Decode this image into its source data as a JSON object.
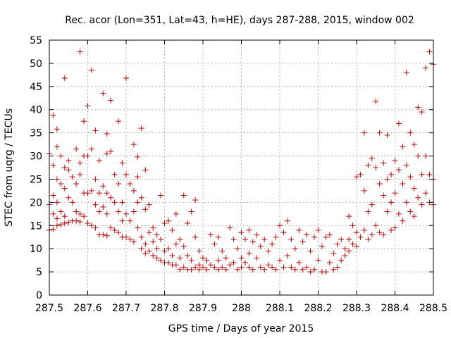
{
  "chart_data": {
    "type": "scatter",
    "title": "Rec. acor (Lon=351, Lat=43, h=HE), days 287-288, 2015, window 002",
    "xlabel": "GPS time / Days of year 2015",
    "ylabel": "STEC from uqrg / TECUs",
    "xlim": [
      287.5,
      288.5
    ],
    "ylim": [
      0,
      55
    ],
    "xticks": [
      287.5,
      287.6,
      287.7,
      287.8,
      287.9,
      288.0,
      288.1,
      288.2,
      288.3,
      288.4,
      288.5
    ],
    "xtick_labels": [
      "287.5",
      "287.6",
      "287.7",
      "287.8",
      "287.9",
      "288",
      "288.1",
      "288.2",
      "288.3",
      "288.4",
      "288.5"
    ],
    "yticks": [
      0,
      5,
      10,
      15,
      20,
      25,
      30,
      35,
      40,
      45,
      50,
      55
    ],
    "ytick_labels": [
      "0",
      "5",
      "10",
      "15",
      "20",
      "25",
      "30",
      "35",
      "40",
      "45",
      "50",
      "55"
    ],
    "grid": true,
    "marker": "+",
    "color": "#c00000",
    "points": [
      [
        287.5,
        30.5
      ],
      [
        287.5,
        19.5
      ],
      [
        287.5,
        14.0
      ],
      [
        287.51,
        38.8
      ],
      [
        287.51,
        28.0
      ],
      [
        287.51,
        21.5
      ],
      [
        287.51,
        17.5
      ],
      [
        287.51,
        14.2
      ],
      [
        287.52,
        35.8
      ],
      [
        287.52,
        32.0
      ],
      [
        287.52,
        25.0
      ],
      [
        287.52,
        20.0
      ],
      [
        287.52,
        16.5
      ],
      [
        287.52,
        15.0
      ],
      [
        287.53,
        30.0
      ],
      [
        287.53,
        24.0
      ],
      [
        287.53,
        18.0
      ],
      [
        287.53,
        15.2
      ],
      [
        287.54,
        46.8
      ],
      [
        287.54,
        27.5
      ],
      [
        287.54,
        23.0
      ],
      [
        287.54,
        17.0
      ],
      [
        287.54,
        15.5
      ],
      [
        287.55,
        29.0
      ],
      [
        287.55,
        27.0
      ],
      [
        287.55,
        21.0
      ],
      [
        287.55,
        15.7
      ],
      [
        287.56,
        25.5
      ],
      [
        287.56,
        20.0
      ],
      [
        287.56,
        16.0
      ],
      [
        287.57,
        31.5
      ],
      [
        287.57,
        24.0
      ],
      [
        287.57,
        18.0
      ],
      [
        287.57,
        16.0
      ],
      [
        287.58,
        52.5
      ],
      [
        287.58,
        28.5
      ],
      [
        287.58,
        26.0
      ],
      [
        287.58,
        17.5
      ],
      [
        287.58,
        15.8
      ],
      [
        287.59,
        37.5
      ],
      [
        287.59,
        30.0
      ],
      [
        287.59,
        22.0
      ],
      [
        287.59,
        17.0
      ],
      [
        287.6,
        40.8
      ],
      [
        287.6,
        30.0
      ],
      [
        287.6,
        22.0
      ],
      [
        287.6,
        15.5
      ],
      [
        287.61,
        48.5
      ],
      [
        287.61,
        31.5
      ],
      [
        287.61,
        22.5
      ],
      [
        287.61,
        15.0
      ],
      [
        287.62,
        35.5
      ],
      [
        287.62,
        25.0
      ],
      [
        287.62,
        19.5
      ],
      [
        287.62,
        14.5
      ],
      [
        287.63,
        29.0
      ],
      [
        287.63,
        22.0
      ],
      [
        287.63,
        18.0
      ],
      [
        287.63,
        13.0
      ],
      [
        287.64,
        43.5
      ],
      [
        287.64,
        23.5
      ],
      [
        287.64,
        19.0
      ],
      [
        287.64,
        13.0
      ],
      [
        287.65,
        34.8
      ],
      [
        287.65,
        30.5
      ],
      [
        287.65,
        22.0
      ],
      [
        287.65,
        17.5
      ],
      [
        287.65,
        12.8
      ],
      [
        287.66,
        42.0
      ],
      [
        287.66,
        31.0
      ],
      [
        287.66,
        21.0
      ],
      [
        287.66,
        14.5
      ],
      [
        287.67,
        26.0
      ],
      [
        287.67,
        20.0
      ],
      [
        287.67,
        14.0
      ],
      [
        287.68,
        37.5
      ],
      [
        287.68,
        24.0
      ],
      [
        287.68,
        18.0
      ],
      [
        287.68,
        13.5
      ],
      [
        287.69,
        28.5
      ],
      [
        287.69,
        20.0
      ],
      [
        287.69,
        16.0
      ],
      [
        287.69,
        12.5
      ],
      [
        287.7,
        46.8
      ],
      [
        287.7,
        26.0
      ],
      [
        287.7,
        17.5
      ],
      [
        287.7,
        12.5
      ],
      [
        287.71,
        24.0
      ],
      [
        287.71,
        16.0
      ],
      [
        287.71,
        12.0
      ],
      [
        287.72,
        32.5
      ],
      [
        287.72,
        22.5
      ],
      [
        287.72,
        18.0
      ],
      [
        287.72,
        11.5
      ],
      [
        287.73,
        29.8
      ],
      [
        287.73,
        25.5
      ],
      [
        287.73,
        20.0
      ],
      [
        287.73,
        14.5
      ],
      [
        287.74,
        36.0
      ],
      [
        287.74,
        21.0
      ],
      [
        287.74,
        12.5
      ],
      [
        287.74,
        10.0
      ],
      [
        287.75,
        27.0
      ],
      [
        287.75,
        18.5
      ],
      [
        287.75,
        11.0
      ],
      [
        287.75,
        9.0
      ],
      [
        287.76,
        19.5
      ],
      [
        287.76,
        13.5
      ],
      [
        287.76,
        9.5
      ],
      [
        287.77,
        14.5
      ],
      [
        287.77,
        11.5
      ],
      [
        287.77,
        8.5
      ],
      [
        287.78,
        13.0
      ],
      [
        287.78,
        10.0
      ],
      [
        287.78,
        8.0
      ],
      [
        287.79,
        21.5
      ],
      [
        287.79,
        12.0
      ],
      [
        287.79,
        7.5
      ],
      [
        287.8,
        15.5
      ],
      [
        287.8,
        9.5
      ],
      [
        287.8,
        7.0
      ],
      [
        287.81,
        16.0
      ],
      [
        287.81,
        10.0
      ],
      [
        287.81,
        7.0
      ],
      [
        287.82,
        14.0
      ],
      [
        287.82,
        8.5
      ],
      [
        287.82,
        6.5
      ],
      [
        287.83,
        17.5
      ],
      [
        287.83,
        11.0
      ],
      [
        287.83,
        6.5
      ],
      [
        287.84,
        12.0
      ],
      [
        287.84,
        8.0
      ],
      [
        287.84,
        5.5
      ],
      [
        287.85,
        21.5
      ],
      [
        287.85,
        10.5
      ],
      [
        287.85,
        6.0
      ],
      [
        287.86,
        15.5
      ],
      [
        287.86,
        8.5
      ],
      [
        287.86,
        5.5
      ],
      [
        287.87,
        18.0
      ],
      [
        287.87,
        7.5
      ],
      [
        287.87,
        5.5
      ],
      [
        287.88,
        20.5
      ],
      [
        287.88,
        12.5
      ],
      [
        287.88,
        6.0
      ],
      [
        287.89,
        9.5
      ],
      [
        287.89,
        6.5
      ],
      [
        287.89,
        5.5
      ],
      [
        287.9,
        8.0
      ],
      [
        287.9,
        6.0
      ],
      [
        287.91,
        7.5
      ],
      [
        287.91,
        5.5
      ],
      [
        287.92,
        13.0
      ],
      [
        287.92,
        6.5
      ],
      [
        287.93,
        11.0
      ],
      [
        287.93,
        6.0
      ],
      [
        287.94,
        12.5
      ],
      [
        287.94,
        7.5
      ],
      [
        287.94,
        5.5
      ],
      [
        287.95,
        9.5
      ],
      [
        287.95,
        6.0
      ],
      [
        287.96,
        8.0
      ],
      [
        287.96,
        5.5
      ],
      [
        287.97,
        14.5
      ],
      [
        287.97,
        6.5
      ],
      [
        287.98,
        12.0
      ],
      [
        287.98,
        7.0
      ],
      [
        287.99,
        10.0
      ],
      [
        287.99,
        5.5
      ],
      [
        288.0,
        13.5
      ],
      [
        288.0,
        8.0
      ],
      [
        288.0,
        6.0
      ],
      [
        288.01,
        12.0
      ],
      [
        288.01,
        7.0
      ],
      [
        288.02,
        14.0
      ],
      [
        288.02,
        9.0
      ],
      [
        288.02,
        6.0
      ],
      [
        288.03,
        11.5
      ],
      [
        288.03,
        5.5
      ],
      [
        288.04,
        13.0
      ],
      [
        288.04,
        8.0
      ],
      [
        288.05,
        10.5
      ],
      [
        288.05,
        6.0
      ],
      [
        288.06,
        12.0
      ],
      [
        288.06,
        5.5
      ],
      [
        288.07,
        9.5
      ],
      [
        288.07,
        6.5
      ],
      [
        288.08,
        11.0
      ],
      [
        288.08,
        6.0
      ],
      [
        288.09,
        12.5
      ],
      [
        288.09,
        5.5
      ],
      [
        288.1,
        15.0
      ],
      [
        288.1,
        7.5
      ],
      [
        288.11,
        13.5
      ],
      [
        288.11,
        6.0
      ],
      [
        288.12,
        16.0
      ],
      [
        288.12,
        8.5
      ],
      [
        288.13,
        12.0
      ],
      [
        288.13,
        6.0
      ],
      [
        288.14,
        10.0
      ],
      [
        288.14,
        5.5
      ],
      [
        288.15,
        14.0
      ],
      [
        288.15,
        7.0
      ],
      [
        288.16,
        11.5
      ],
      [
        288.16,
        5.5
      ],
      [
        288.17,
        13.0
      ],
      [
        288.17,
        6.0
      ],
      [
        288.18,
        9.5
      ],
      [
        288.18,
        5.0
      ],
      [
        288.19,
        12.5
      ],
      [
        288.19,
        5.5
      ],
      [
        288.2,
        14.0
      ],
      [
        288.2,
        7.5
      ],
      [
        288.21,
        10.5
      ],
      [
        288.21,
        5.0
      ],
      [
        288.22,
        12.5
      ],
      [
        288.22,
        5.0
      ],
      [
        288.23,
        13.0
      ],
      [
        288.23,
        7.0
      ],
      [
        288.24,
        9.0
      ],
      [
        288.24,
        5.5
      ],
      [
        288.25,
        11.0
      ],
      [
        288.25,
        6.0
      ],
      [
        288.26,
        12.0
      ],
      [
        288.26,
        7.5
      ],
      [
        288.27,
        10.0
      ],
      [
        288.27,
        8.5
      ],
      [
        288.28,
        17.0
      ],
      [
        288.28,
        12.0
      ],
      [
        288.28,
        9.5
      ],
      [
        288.29,
        15.0
      ],
      [
        288.29,
        11.0
      ],
      [
        288.3,
        25.5
      ],
      [
        288.3,
        13.5
      ],
      [
        288.3,
        10.5
      ],
      [
        288.31,
        26.0
      ],
      [
        288.31,
        12.5
      ],
      [
        288.32,
        35.0
      ],
      [
        288.32,
        22.5
      ],
      [
        288.32,
        14.0
      ],
      [
        288.33,
        28.0
      ],
      [
        288.33,
        18.0
      ],
      [
        288.33,
        12.0
      ],
      [
        288.34,
        29.5
      ],
      [
        288.34,
        19.5
      ],
      [
        288.34,
        13.0
      ],
      [
        288.35,
        41.8
      ],
      [
        288.35,
        27.5
      ],
      [
        288.35,
        15.0
      ],
      [
        288.36,
        35.0
      ],
      [
        288.36,
        24.0
      ],
      [
        288.36,
        13.5
      ],
      [
        288.37,
        28.5
      ],
      [
        288.37,
        21.5
      ],
      [
        288.37,
        13.0
      ],
      [
        288.38,
        34.5
      ],
      [
        288.38,
        25.0
      ],
      [
        288.38,
        18.0
      ],
      [
        288.39,
        26.0
      ],
      [
        288.39,
        20.0
      ],
      [
        288.39,
        14.0
      ],
      [
        288.4,
        29.0
      ],
      [
        288.4,
        22.0
      ],
      [
        288.4,
        14.5
      ],
      [
        288.41,
        37.0
      ],
      [
        288.41,
        27.0
      ],
      [
        288.41,
        17.5
      ],
      [
        288.42,
        32.0
      ],
      [
        288.42,
        24.0
      ],
      [
        288.42,
        16.0
      ],
      [
        288.43,
        48.0
      ],
      [
        288.43,
        28.0
      ],
      [
        288.43,
        20.0
      ],
      [
        288.44,
        35.0
      ],
      [
        288.44,
        25.5
      ],
      [
        288.44,
        18.0
      ],
      [
        288.45,
        32.5
      ],
      [
        288.45,
        23.0
      ],
      [
        288.45,
        17.0
      ],
      [
        288.46,
        40.5
      ],
      [
        288.46,
        30.0
      ],
      [
        288.46,
        21.0
      ],
      [
        288.47,
        39.5
      ],
      [
        288.47,
        26.0
      ],
      [
        288.47,
        19.5
      ],
      [
        288.48,
        49.0
      ],
      [
        288.48,
        30.0
      ],
      [
        288.48,
        22.0
      ],
      [
        288.49,
        52.5
      ],
      [
        288.49,
        26.0
      ],
      [
        288.49,
        20.0
      ],
      [
        288.5,
        49.8
      ],
      [
        288.5,
        25.0
      ],
      [
        288.5,
        19.5
      ]
    ]
  }
}
